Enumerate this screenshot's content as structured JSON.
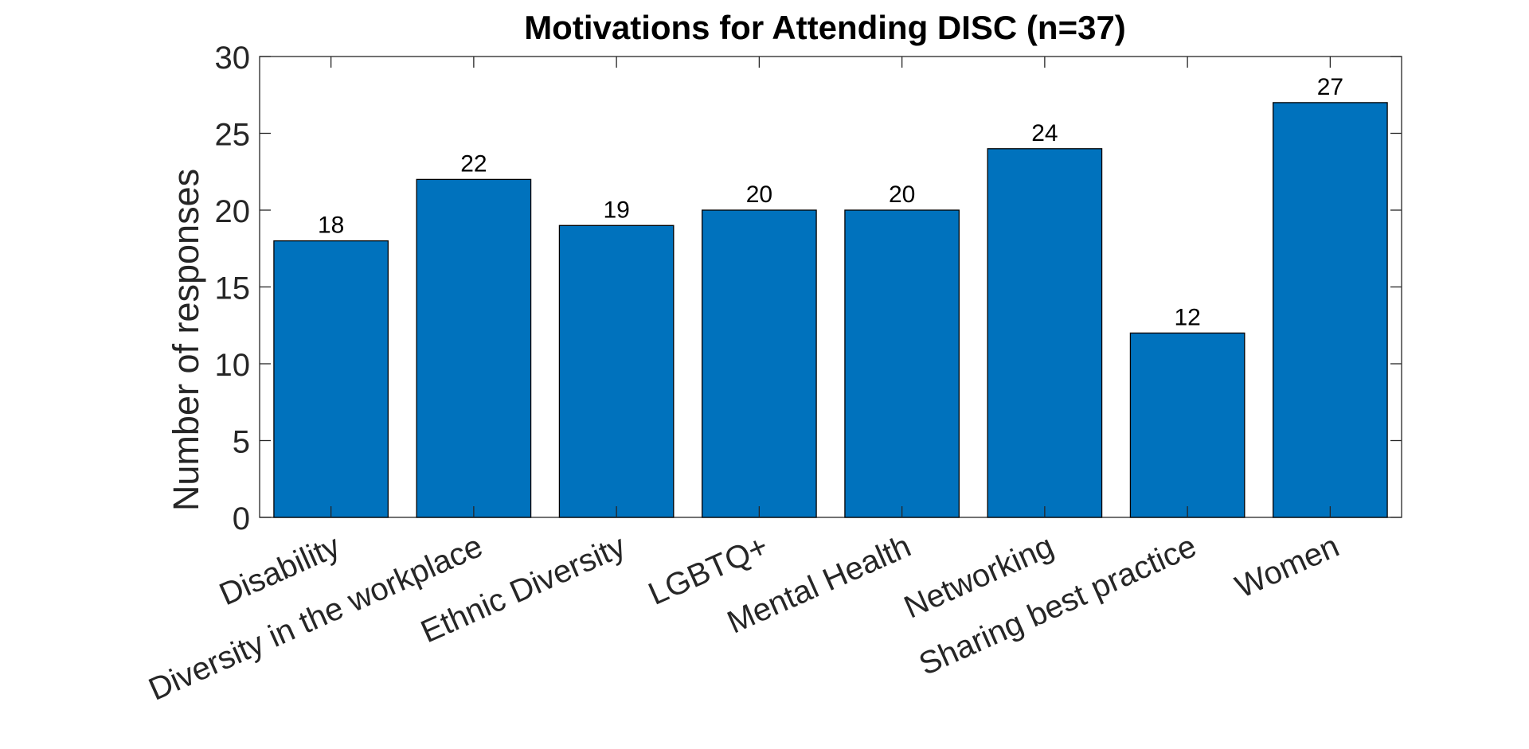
{
  "chart_data": {
    "type": "bar",
    "title": "Motivations for Attending DISC (n=37)",
    "xlabel": "",
    "ylabel": "Number of responses",
    "categories": [
      "Disability",
      "Diversity in the workplace",
      "Ethnic Diversity",
      "LGBTQ+",
      "Mental Health",
      "Networking",
      "Sharing best practice",
      "Women"
    ],
    "values": [
      18,
      22,
      19,
      20,
      20,
      24,
      12,
      27
    ],
    "data_labels": [
      "18",
      "22",
      "19",
      "20",
      "20",
      "24",
      "12",
      "27"
    ],
    "ylim": [
      0,
      30
    ],
    "yticks": [
      0,
      5,
      10,
      15,
      20,
      25,
      30
    ],
    "ytick_labels": [
      "0",
      "5",
      "10",
      "15",
      "20",
      "25",
      "30"
    ],
    "bar_color": "#0072BD",
    "grid": false,
    "legend": "none"
  }
}
